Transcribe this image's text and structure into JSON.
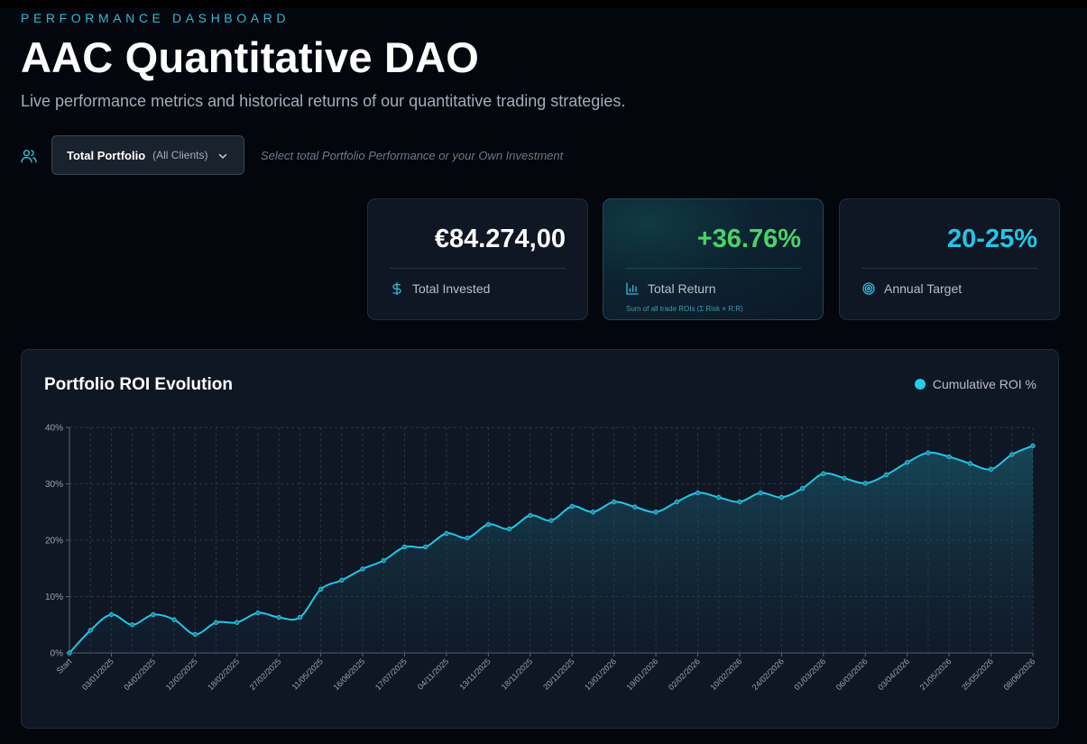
{
  "header": {
    "eyebrow": "PERFORMANCE DASHBOARD",
    "title": "AAC Quantitative DAO",
    "subtitle": "Live performance metrics and historical returns of our quantitative trading strategies."
  },
  "selector": {
    "icon": "users-icon",
    "main_label": "Total Portfolio",
    "sub_label": "(All Clients)",
    "hint": "Select total Portfolio Performance or your Own Investment"
  },
  "cards": {
    "invested": {
      "value": "€84.274,00",
      "label": "Total Invested",
      "icon": "dollar-icon",
      "color": "#ffffff"
    },
    "return": {
      "value": "+36.76%",
      "label": "Total Return",
      "note": "Sum of all trade ROIs (Σ Risk × R:R)",
      "icon": "bar-chart-icon",
      "color": "#4ad36a"
    },
    "target": {
      "value": "20-25%",
      "label": "Annual Target",
      "icon": "target-icon",
      "color": "#22c6e6"
    }
  },
  "chart": {
    "title": "Portfolio ROI Evolution",
    "legend": "Cumulative ROI %"
  },
  "colors": {
    "accent": "#22c6e6",
    "positive": "#4ad36a",
    "background": "#03060d",
    "panel": "#0f1624"
  },
  "chart_data": {
    "type": "area",
    "title": "Portfolio ROI Evolution",
    "xlabel": "",
    "ylabel": "",
    "ylim": [
      0,
      40
    ],
    "y_ticks": [
      "0%",
      "10%",
      "20%",
      "30%",
      "40%"
    ],
    "grid": true,
    "legend_position": "top-right",
    "x_tick_labels": [
      "Start",
      "03/01/2025",
      "04/02/2025",
      "12/02/2025",
      "18/02/2025",
      "27/02/2025",
      "11/05/2025",
      "16/06/2025",
      "17/07/2025",
      "04/11/2025",
      "13/11/2025",
      "18/11/2025",
      "20/11/2025",
      "13/01/2026",
      "19/01/2026",
      "02/02/2026",
      "10/02/2026",
      "24/02/2026",
      "01/03/2026",
      "06/03/2026",
      "03/04/2026",
      "21/05/2026",
      "25/05/2026",
      "08/06/2026"
    ],
    "series": [
      {
        "name": "Cumulative ROI %",
        "color": "#22c6e6",
        "values": [
          0,
          4.0,
          6.8,
          5.0,
          6.8,
          5.9,
          3.3,
          5.4,
          5.4,
          7.1,
          6.3,
          6.3,
          11.3,
          12.9,
          14.9,
          16.4,
          18.8,
          18.8,
          21.2,
          20.4,
          22.8,
          22.0,
          24.4,
          23.5,
          26.0,
          25.0,
          26.8,
          25.9,
          25.0,
          26.8,
          28.4,
          27.6,
          26.8,
          28.4,
          27.6,
          29.2,
          31.8,
          31.0,
          30.1,
          31.6,
          33.8,
          35.5,
          34.8,
          33.6,
          32.6,
          35.2,
          36.76
        ]
      }
    ]
  }
}
